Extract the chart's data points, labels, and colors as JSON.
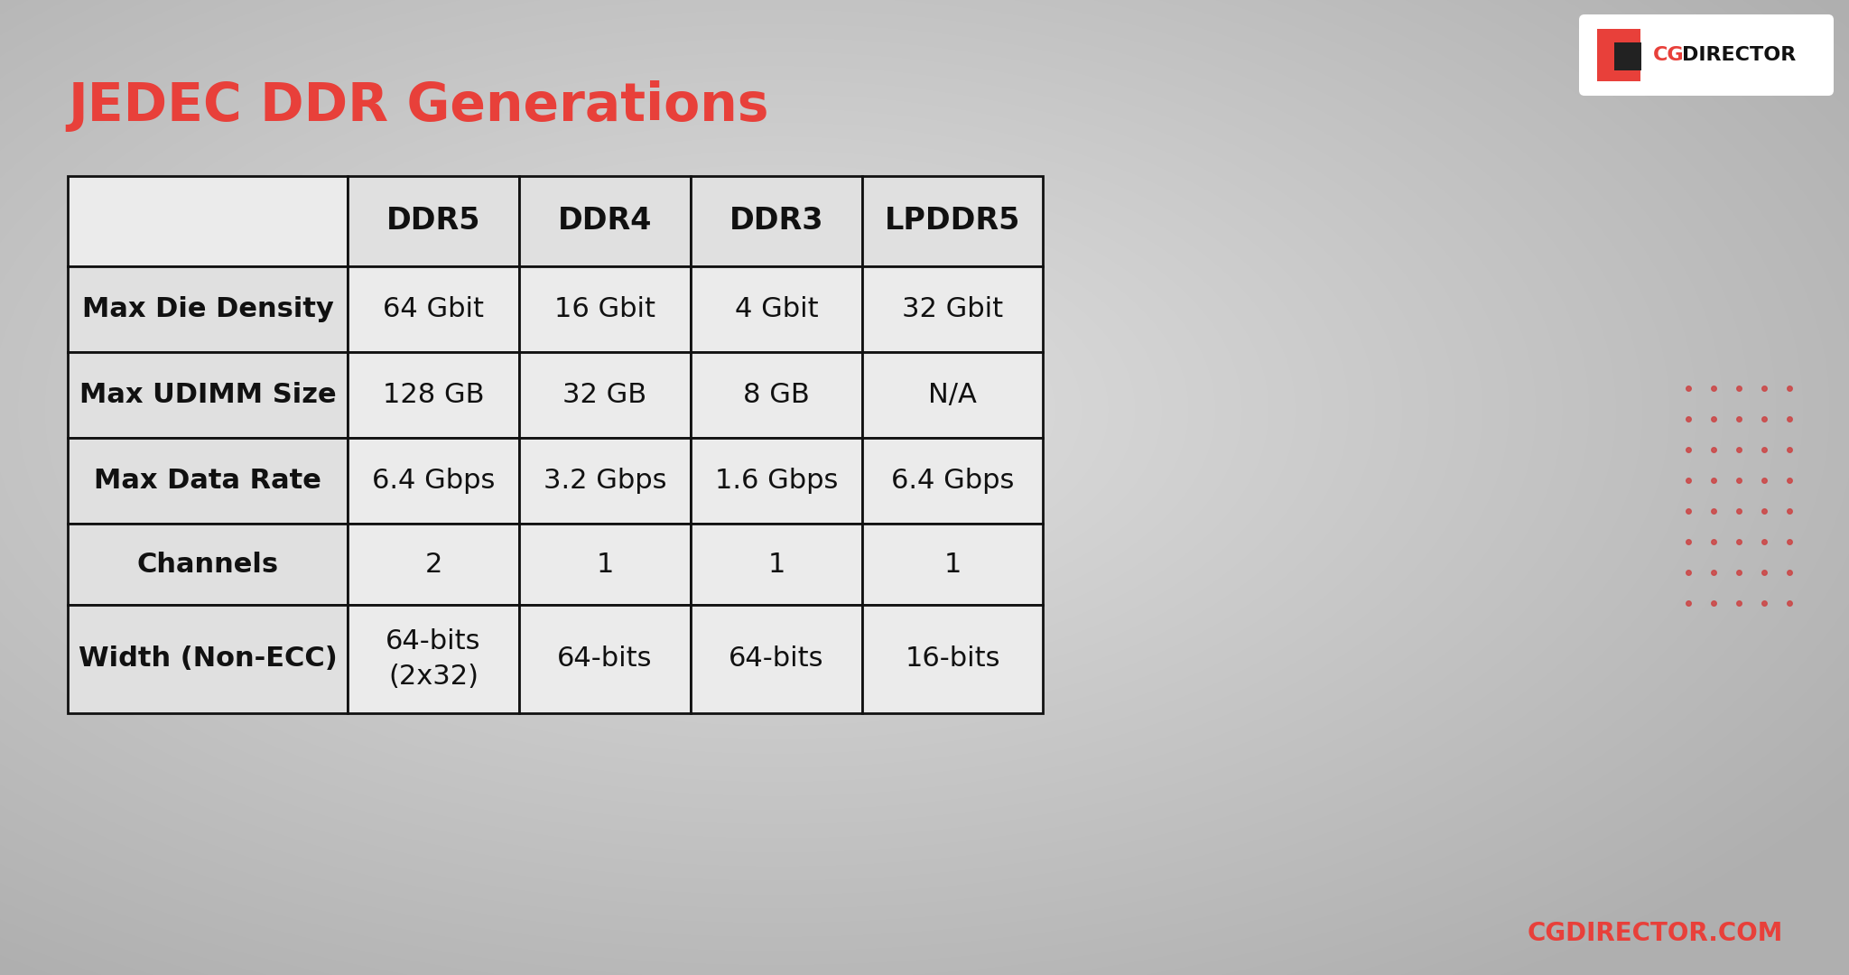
{
  "title": "JEDEC DDR Generations",
  "title_color": "#E8403A",
  "title_fontsize": 42,
  "bg_color_outer": "#B0B0B0",
  "bg_color_inner": "#D8D8D8",
  "watermark": "CGDIRECTOR.COM",
  "watermark_color": "#E8403A",
  "col_headers": [
    "",
    "DDR5",
    "DDR4",
    "DDR3",
    "LPDDR5"
  ],
  "rows": [
    [
      "Max Die Density",
      "64 Gbit",
      "16 Gbit",
      "4 Gbit",
      "32 Gbit"
    ],
    [
      "Max UDIMM Size",
      "128 GB",
      "32 GB",
      "8 GB",
      "N/A"
    ],
    [
      "Max Data Rate",
      "6.4 Gbps",
      "3.2 Gbps",
      "1.6 Gbps",
      "6.4 Gbps"
    ],
    [
      "Channels",
      "2",
      "1",
      "1",
      "1"
    ],
    [
      "Width (Non-ECC)",
      "64-bits\n(2x32)",
      "64-bits",
      "64-bits",
      "16-bits"
    ]
  ],
  "table_bg": "#EBEBEB",
  "header_bg": "#E0E0E0",
  "row_label_bg": "#E0E0E0",
  "border_color": "#111111",
  "text_color": "#111111",
  "header_fontsize": 24,
  "cell_fontsize": 22,
  "row_label_fontsize": 22,
  "dot_color": "#CC4444",
  "arc_bottom_left_color": "#E8403A",
  "arc_top_right_color": "#DDDDDD",
  "arc_bottom_right_color": "#FFFFFF"
}
